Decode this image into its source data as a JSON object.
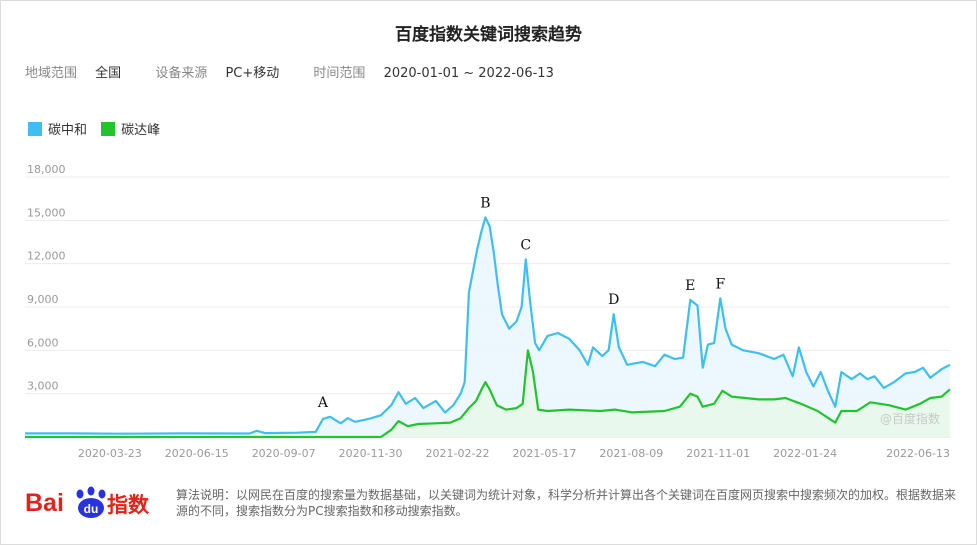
{
  "header": {
    "title": "百度指数关键词搜索趋势"
  },
  "filters": [
    {
      "label": "地域范围",
      "value": "全国"
    },
    {
      "label": "设备来源",
      "value": "PC+移动"
    },
    {
      "label": "时间范围",
      "value": "2020-01-01 ~ 2022-06-13"
    }
  ],
  "legend": [
    {
      "name": "碳中和",
      "color": "#3fbfef"
    },
    {
      "name": "碳达峰",
      "color": "#22c32e"
    }
  ],
  "watermark": "@百度指数",
  "footer": {
    "logo_text": "Bai",
    "logo_paw_text": "du",
    "logo_suffix": "指数",
    "note": "算法说明：以网民在百度的搜索量为数据基础，以关键词为统计对象，科学分析并计算出各个关键词在百度网页搜索中搜索频次的加权。根据数据来源的不同，搜索指数分为PC搜索指数和移动搜索指数。"
  },
  "chart_data": {
    "type": "area",
    "ylim": [
      0,
      18000
    ],
    "yticks": [
      3000,
      6000,
      9000,
      12000,
      15000,
      18000
    ],
    "ytick_labels": [
      "3,000",
      "6,000",
      "9,000",
      "12,000",
      "15,000",
      "18,000"
    ],
    "grid": true,
    "legend_position": "top-left",
    "x_range": [
      "2020-01-01",
      "2022-06-13"
    ],
    "xtick_dates": [
      "2020-03-23",
      "2020-06-15",
      "2020-09-07",
      "2020-11-30",
      "2021-02-22",
      "2021-05-17",
      "2021-08-09",
      "2021-11-01",
      "2022-01-24",
      "2022-06-13"
    ],
    "series": [
      {
        "name": "碳中和",
        "color": "#3fbfef",
        "fill": "#eaf7fd",
        "points": [
          [
            "2020-01-01",
            250
          ],
          [
            "2020-02-15",
            250
          ],
          [
            "2020-04-01",
            230
          ],
          [
            "2020-06-01",
            250
          ],
          [
            "2020-08-05",
            240
          ],
          [
            "2020-08-12",
            430
          ],
          [
            "2020-08-20",
            270
          ],
          [
            "2020-09-20",
            300
          ],
          [
            "2020-10-08",
            350
          ],
          [
            "2020-10-15",
            1250
          ],
          [
            "2020-10-22",
            1400
          ],
          [
            "2020-11-01",
            950
          ],
          [
            "2020-11-08",
            1300
          ],
          [
            "2020-11-15",
            1050
          ],
          [
            "2020-11-28",
            1250
          ],
          [
            "2020-12-10",
            1500
          ],
          [
            "2020-12-20",
            2200
          ],
          [
            "2020-12-27",
            3100
          ],
          [
            "2021-01-03",
            2300
          ],
          [
            "2021-01-12",
            2700
          ],
          [
            "2021-01-20",
            2000
          ],
          [
            "2021-02-01",
            2500
          ],
          [
            "2021-02-10",
            1700
          ],
          [
            "2021-02-18",
            2200
          ],
          [
            "2021-02-25",
            3000
          ],
          [
            "2021-03-01",
            3800
          ],
          [
            "2021-03-05",
            10000
          ],
          [
            "2021-03-09",
            11500
          ],
          [
            "2021-03-13",
            13000
          ],
          [
            "2021-03-17",
            14200
          ],
          [
            "2021-03-21",
            15200
          ],
          [
            "2021-03-25",
            14600
          ],
          [
            "2021-03-29",
            12800
          ],
          [
            "2021-04-02",
            10500
          ],
          [
            "2021-04-06",
            8500
          ],
          [
            "2021-04-13",
            7500
          ],
          [
            "2021-04-20",
            8000
          ],
          [
            "2021-04-25",
            9000
          ],
          [
            "2021-04-29",
            12300
          ],
          [
            "2021-05-03",
            9500
          ],
          [
            "2021-05-08",
            6500
          ],
          [
            "2021-05-12",
            6000
          ],
          [
            "2021-05-20",
            7000
          ],
          [
            "2021-05-30",
            7200
          ],
          [
            "2021-06-10",
            6800
          ],
          [
            "2021-06-20",
            6000
          ],
          [
            "2021-06-28",
            5000
          ],
          [
            "2021-07-03",
            6200
          ],
          [
            "2021-07-12",
            5600
          ],
          [
            "2021-07-18",
            6000
          ],
          [
            "2021-07-23",
            8500
          ],
          [
            "2021-07-28",
            6200
          ],
          [
            "2021-08-05",
            5000
          ],
          [
            "2021-08-20",
            5200
          ],
          [
            "2021-09-01",
            4900
          ],
          [
            "2021-09-10",
            5700
          ],
          [
            "2021-09-20",
            5400
          ],
          [
            "2021-09-28",
            5500
          ],
          [
            "2021-10-05",
            9500
          ],
          [
            "2021-10-12",
            9100
          ],
          [
            "2021-10-17",
            4800
          ],
          [
            "2021-10-22",
            6400
          ],
          [
            "2021-10-28",
            6500
          ],
          [
            "2021-11-03",
            9600
          ],
          [
            "2021-11-08",
            7500
          ],
          [
            "2021-11-14",
            6400
          ],
          [
            "2021-11-25",
            6000
          ],
          [
            "2021-12-10",
            5800
          ],
          [
            "2021-12-25",
            5400
          ],
          [
            "2022-01-03",
            5700
          ],
          [
            "2022-01-12",
            4200
          ],
          [
            "2022-01-18",
            6200
          ],
          [
            "2022-01-25",
            4500
          ],
          [
            "2022-02-01",
            3500
          ],
          [
            "2022-02-08",
            4500
          ],
          [
            "2022-02-15",
            3200
          ],
          [
            "2022-02-22",
            2100
          ],
          [
            "2022-02-28",
            4500
          ],
          [
            "2022-03-10",
            4000
          ],
          [
            "2022-03-18",
            4400
          ],
          [
            "2022-03-25",
            4000
          ],
          [
            "2022-04-01",
            4200
          ],
          [
            "2022-04-10",
            3400
          ],
          [
            "2022-04-20",
            3800
          ],
          [
            "2022-05-01",
            4400
          ],
          [
            "2022-05-10",
            4500
          ],
          [
            "2022-05-18",
            4800
          ],
          [
            "2022-05-25",
            4100
          ],
          [
            "2022-06-05",
            4700
          ],
          [
            "2022-06-13",
            5000
          ]
        ]
      },
      {
        "name": "碳达峰",
        "color": "#22c32e",
        "fill": "#e8f7ea",
        "points": [
          [
            "2020-01-01",
            0
          ],
          [
            "2020-12-10",
            0
          ],
          [
            "2020-12-20",
            500
          ],
          [
            "2020-12-27",
            1100
          ],
          [
            "2021-01-05",
            750
          ],
          [
            "2021-01-15",
            900
          ],
          [
            "2021-02-01",
            950
          ],
          [
            "2021-02-15",
            1000
          ],
          [
            "2021-02-25",
            1300
          ],
          [
            "2021-03-05",
            2000
          ],
          [
            "2021-03-12",
            2500
          ],
          [
            "2021-03-18",
            3400
          ],
          [
            "2021-03-21",
            3800
          ],
          [
            "2021-03-25",
            3300
          ],
          [
            "2021-04-01",
            2200
          ],
          [
            "2021-04-10",
            1900
          ],
          [
            "2021-04-20",
            2000
          ],
          [
            "2021-04-26",
            2300
          ],
          [
            "2021-05-01",
            6000
          ],
          [
            "2021-05-06",
            4500
          ],
          [
            "2021-05-11",
            1900
          ],
          [
            "2021-05-20",
            1800
          ],
          [
            "2021-06-10",
            1900
          ],
          [
            "2021-07-10",
            1800
          ],
          [
            "2021-07-24",
            1900
          ],
          [
            "2021-08-10",
            1700
          ],
          [
            "2021-09-10",
            1800
          ],
          [
            "2021-09-25",
            2100
          ],
          [
            "2021-10-05",
            3000
          ],
          [
            "2021-10-12",
            2800
          ],
          [
            "2021-10-17",
            2100
          ],
          [
            "2021-10-28",
            2300
          ],
          [
            "2021-11-05",
            3200
          ],
          [
            "2021-11-14",
            2800
          ],
          [
            "2021-12-10",
            2600
          ],
          [
            "2021-12-25",
            2600
          ],
          [
            "2022-01-05",
            2700
          ],
          [
            "2022-01-20",
            2300
          ],
          [
            "2022-02-05",
            1800
          ],
          [
            "2022-02-22",
            1000
          ],
          [
            "2022-02-28",
            1800
          ],
          [
            "2022-03-15",
            1800
          ],
          [
            "2022-03-28",
            2400
          ],
          [
            "2022-04-15",
            2200
          ],
          [
            "2022-05-01",
            1900
          ],
          [
            "2022-05-15",
            2300
          ],
          [
            "2022-05-25",
            2700
          ],
          [
            "2022-06-05",
            2800
          ],
          [
            "2022-06-13",
            3300
          ]
        ]
      }
    ],
    "annotations": [
      {
        "label": "A",
        "x": "2020-10-15",
        "y": 1400
      },
      {
        "label": "B",
        "x": "2021-03-21",
        "y": 15200
      },
      {
        "label": "C",
        "x": "2021-04-29",
        "y": 12300
      },
      {
        "label": "D",
        "x": "2021-07-23",
        "y": 8500
      },
      {
        "label": "E",
        "x": "2021-10-05",
        "y": 9500
      },
      {
        "label": "F",
        "x": "2021-11-03",
        "y": 9600
      }
    ]
  }
}
